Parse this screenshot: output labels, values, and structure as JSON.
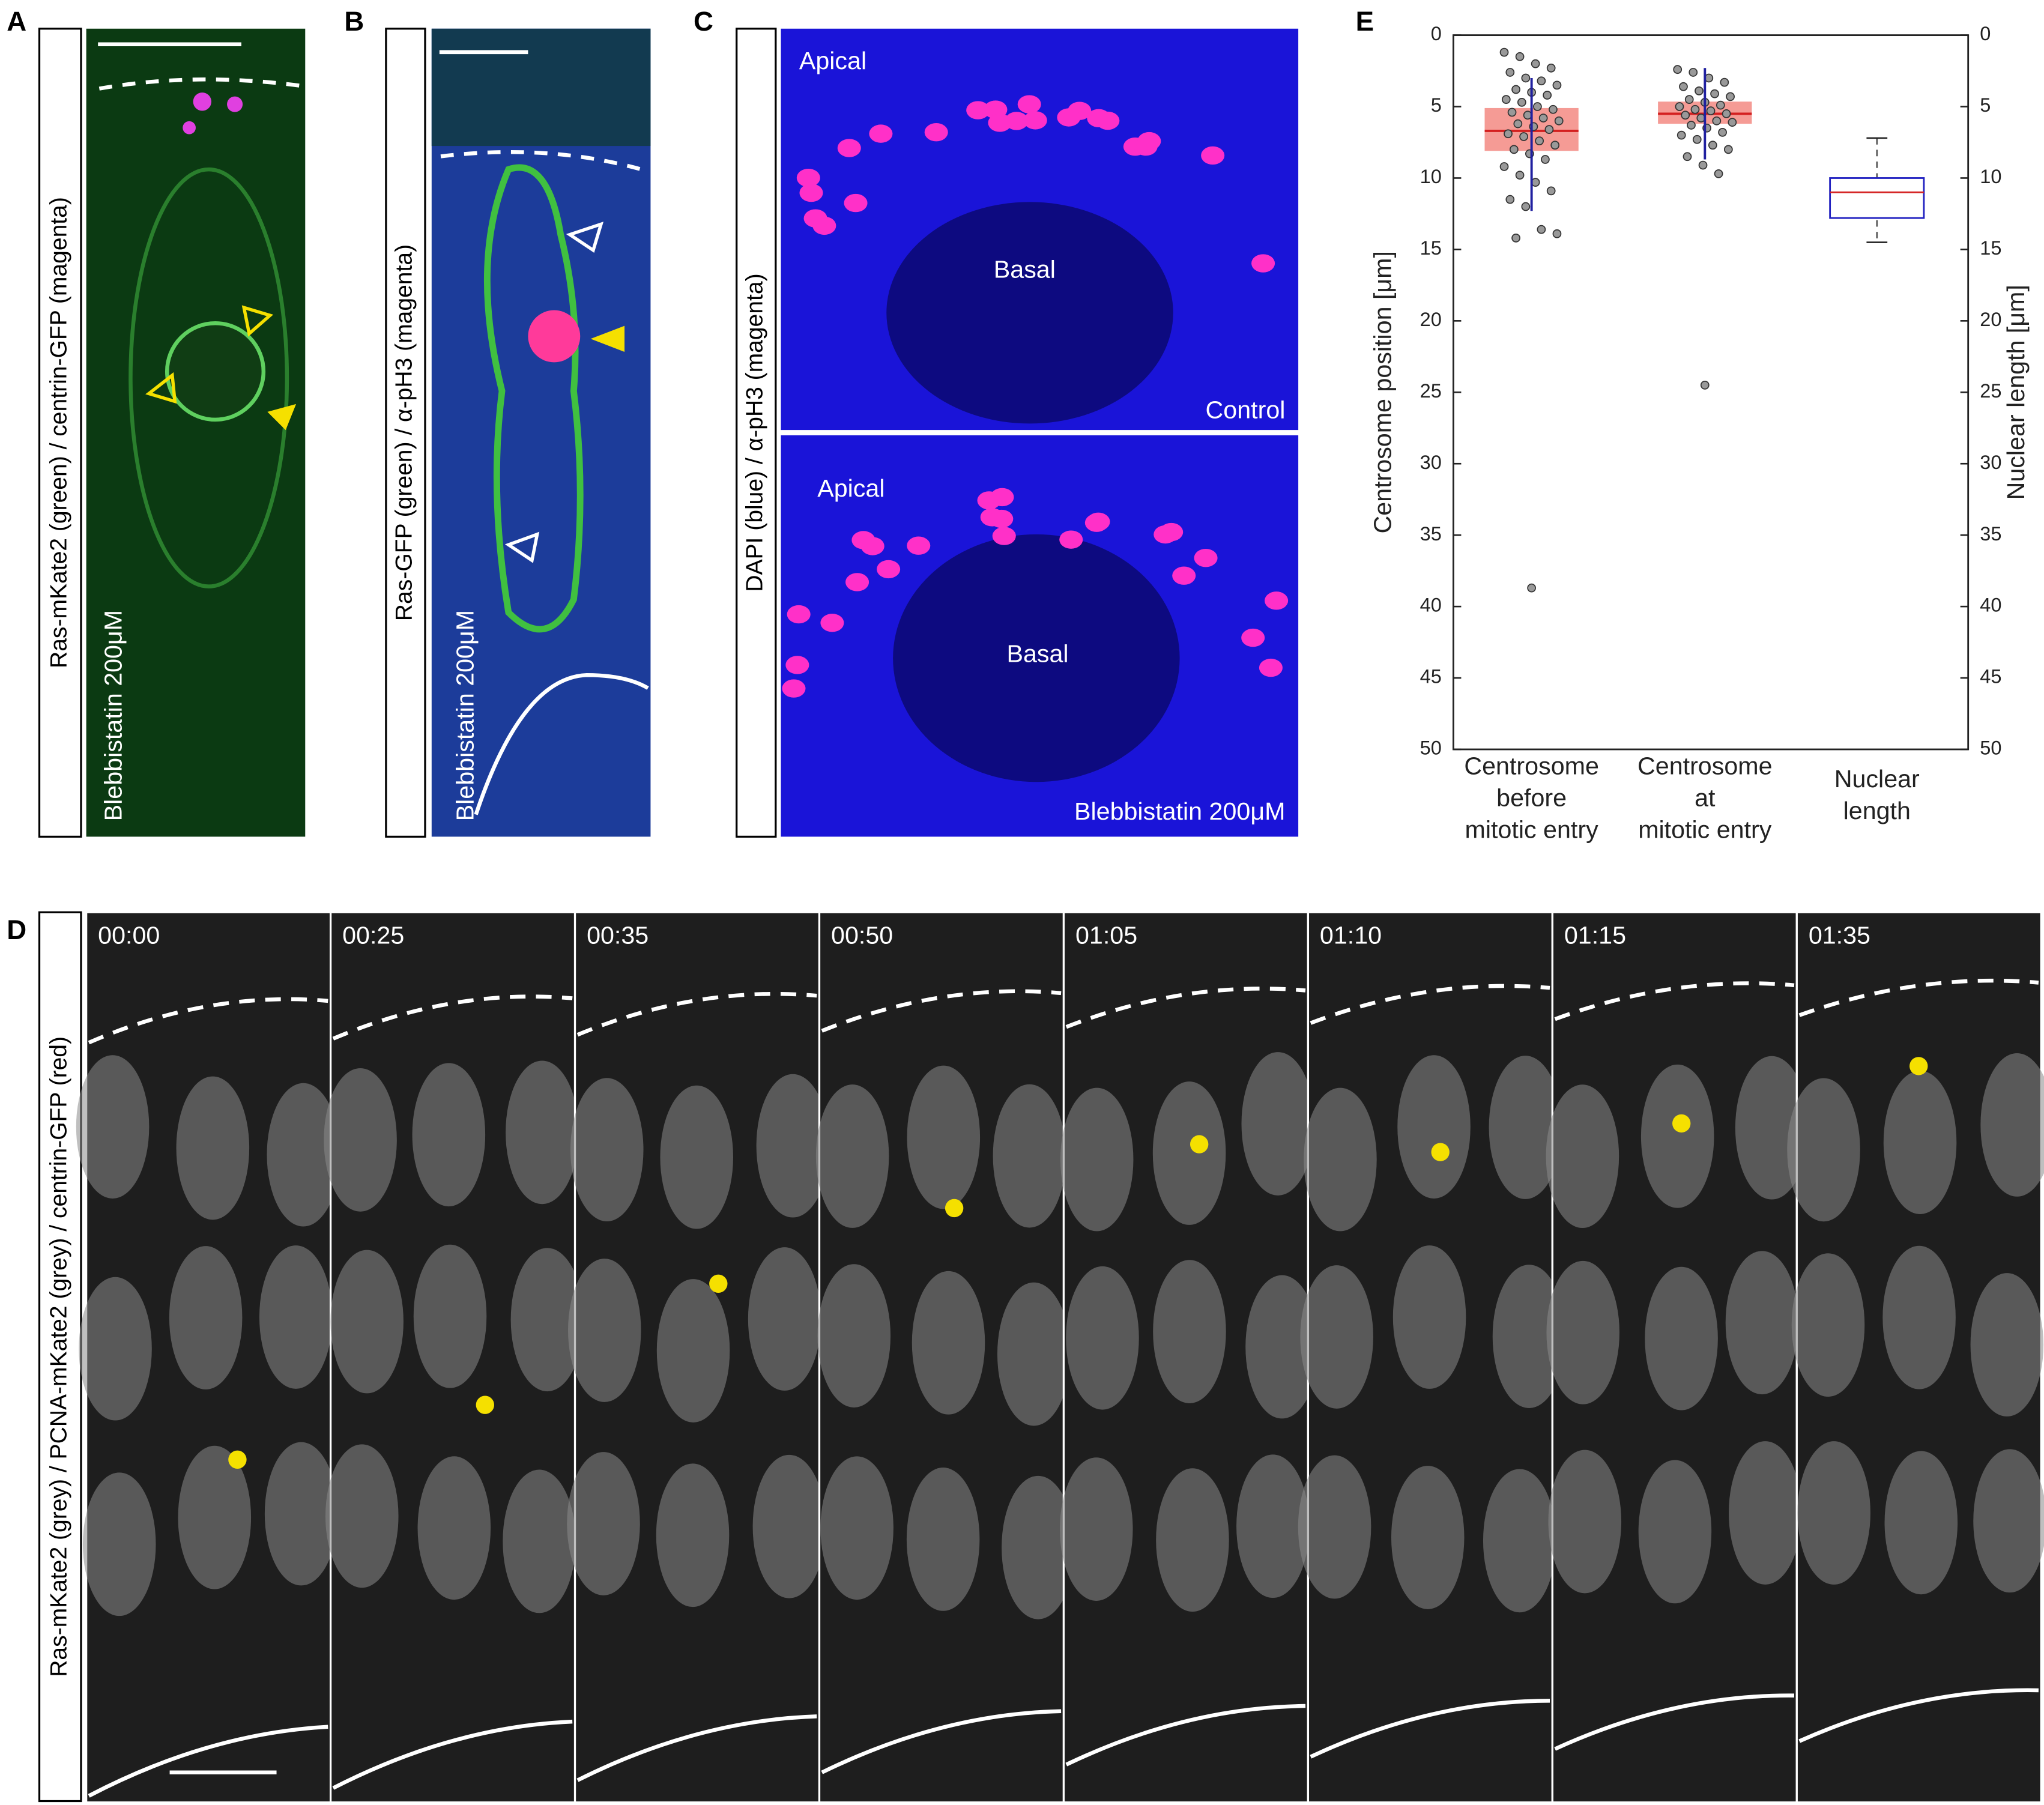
{
  "panel_labels": [
    "A",
    "B",
    "C",
    "D",
    "E"
  ],
  "panel_a": {
    "side_label": "Ras-mKate2 (green) / centrin-GFP (magenta)",
    "treatment": "Blebbistatin 200μM"
  },
  "panel_b": {
    "side_label": "Ras-GFP (green) / α-pH3 (magenta)",
    "treatment": "Blebbistatin 200μM"
  },
  "panel_c": {
    "side_label": "DAPI (blue) / α-pH3 (magenta)",
    "top": {
      "apical": "Apical",
      "basal": "Basal",
      "condition": "Control"
    },
    "bottom": {
      "apical": "Apical",
      "basal": "Basal",
      "condition": "Blebbistatin 200μM"
    }
  },
  "panel_d": {
    "side_label": "Ras-mKate2 (grey) / PCNA-mKate2 (grey) / centrin-GFP (red)",
    "times": [
      "00:00",
      "00:25",
      "00:35",
      "00:50",
      "01:05",
      "01:10",
      "01:15",
      "01:35"
    ]
  },
  "chart_data": {
    "type": "box",
    "ylabel": "Centrosome position [μm]",
    "y2label": "Nuclear length [μm]",
    "categories": [
      [
        "Centrosome",
        "before",
        "mitotic entry"
      ],
      [
        "Centrosome",
        "at",
        "mitotic entry"
      ],
      [
        "Nuclear",
        "length"
      ]
    ],
    "ylim": [
      0,
      50
    ],
    "yticks": [
      0,
      5,
      10,
      15,
      20,
      25,
      30,
      35,
      40,
      45,
      50
    ],
    "y2lim": [
      0,
      50
    ],
    "y2ticks": [
      0,
      5,
      10,
      15,
      20,
      25,
      30,
      35,
      40,
      45,
      50
    ],
    "y_inverted": true,
    "boxes": [
      {
        "whislo": 3.0,
        "q1": 5.1,
        "med": 6.7,
        "q3": 8.1,
        "whishi": 12.3,
        "box_color": "#f4908a",
        "median_color": "#d42020",
        "whisker_color": "#2020a0",
        "fliers": [
          38.7
        ],
        "points": [
          1.2,
          1.5,
          2.0,
          2.3,
          2.6,
          3.0,
          3.2,
          3.5,
          3.8,
          4.0,
          4.2,
          4.5,
          4.7,
          5.0,
          5.2,
          5.4,
          5.6,
          5.8,
          6.0,
          6.2,
          6.4,
          6.6,
          6.9,
          7.1,
          7.4,
          7.7,
          8.0,
          8.3,
          8.7,
          9.2,
          9.8,
          10.3,
          10.9,
          11.5,
          12.0,
          13.6,
          13.9,
          14.2
        ]
      },
      {
        "whislo": 2.3,
        "q1": 4.65,
        "med": 5.5,
        "q3": 6.2,
        "whishi": 8.7,
        "box_color": "#f4908a",
        "median_color": "#d42020",
        "whisker_color": "#2020a0",
        "fliers": [
          24.5
        ],
        "points": [
          2.4,
          2.6,
          3.0,
          3.3,
          3.6,
          3.9,
          4.1,
          4.3,
          4.5,
          4.7,
          4.9,
          5.0,
          5.2,
          5.3,
          5.5,
          5.6,
          5.8,
          6.0,
          6.1,
          6.3,
          6.5,
          6.8,
          7.0,
          7.3,
          7.7,
          8.0,
          8.5,
          9.1,
          9.7
        ]
      },
      {
        "whislo": 7.2,
        "q1": 10.0,
        "med": 11.0,
        "q3": 12.8,
        "whishi": 14.5,
        "box_color": "#ffffff",
        "box_stroke": "#2020c0",
        "median_color": "#d42020",
        "whisker_color": "#555555",
        "axis": "y2"
      }
    ]
  }
}
